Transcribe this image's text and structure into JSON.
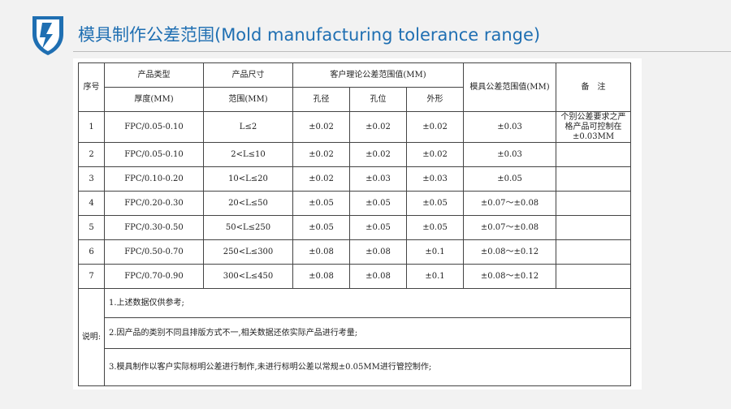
{
  "header": {
    "title": "模具制作公差范围(Mold manufacturing tolerance range)",
    "logo_icon": "shield-lightning-logo-icon",
    "accent_color": "#1f6fb2"
  },
  "table": {
    "headers": {
      "index": "序号",
      "product_type": "产品类型",
      "product_size": "产品尺寸",
      "customer_tolerance": "客户理论公差范围值(MM)",
      "mold_tolerance": "模具公差范围值(MM)",
      "remarks": "备　注",
      "thickness": "厚度(MM)",
      "range": "范围(MM)",
      "hole_diameter": "孔径",
      "hole_position": "孔位",
      "outline": "外形"
    },
    "rows": [
      {
        "no": "1",
        "thickness": "FPC/0.05-0.10",
        "range": "L≤2",
        "hole_diameter": "±0.02",
        "hole_position": "±0.02",
        "outline": "±0.02",
        "mold": "±0.03"
      },
      {
        "no": "2",
        "thickness": "FPC/0.05-0.10",
        "range": "2<L≤10",
        "hole_diameter": "±0.02",
        "hole_position": "±0.02",
        "outline": "±0.02",
        "mold": "±0.03"
      },
      {
        "no": "3",
        "thickness": "FPC/0.10-0.20",
        "range": "10<L≤20",
        "hole_diameter": "±0.02",
        "hole_position": "±0.03",
        "outline": "±0.03",
        "mold": "±0.05"
      },
      {
        "no": "4",
        "thickness": "FPC/0.20-0.30",
        "range": "20<L≤50",
        "hole_diameter": "±0.05",
        "hole_position": "±0.05",
        "outline": "±0.05",
        "mold": "±0.07～±0.08"
      },
      {
        "no": "5",
        "thickness": "FPC/0.30-0.50",
        "range": "50<L≤250",
        "hole_diameter": "±0.05",
        "hole_position": "±0.05",
        "outline": "±0.05",
        "mold": "±0.07～±0.08"
      },
      {
        "no": "6",
        "thickness": "FPC/0.50-0.70",
        "range": "250<L≤300",
        "hole_diameter": "±0.08",
        "hole_position": "±0.08",
        "outline": "±0.1",
        "mold": "±0.08～±0.12"
      },
      {
        "no": "7",
        "thickness": "FPC/0.70-0.90",
        "range": "300<L≤450",
        "hole_diameter": "±0.08",
        "hole_position": "±0.08",
        "outline": "±0.1",
        "mold": "±0.08～±0.12"
      }
    ],
    "remark_cell": "个别公差要求之严格产品可控制在±0.03MM",
    "notes_label": "说明:",
    "notes": [
      "1.上述数据仅供参考;",
      "2.因产品的类别不同且排版方式不一,相关数据还依实际产品进行考量;",
      "3.模具制作以客户实际标明公差进行制作,未进行标明公差以常规±0.05MM进行管控制作;"
    ]
  }
}
